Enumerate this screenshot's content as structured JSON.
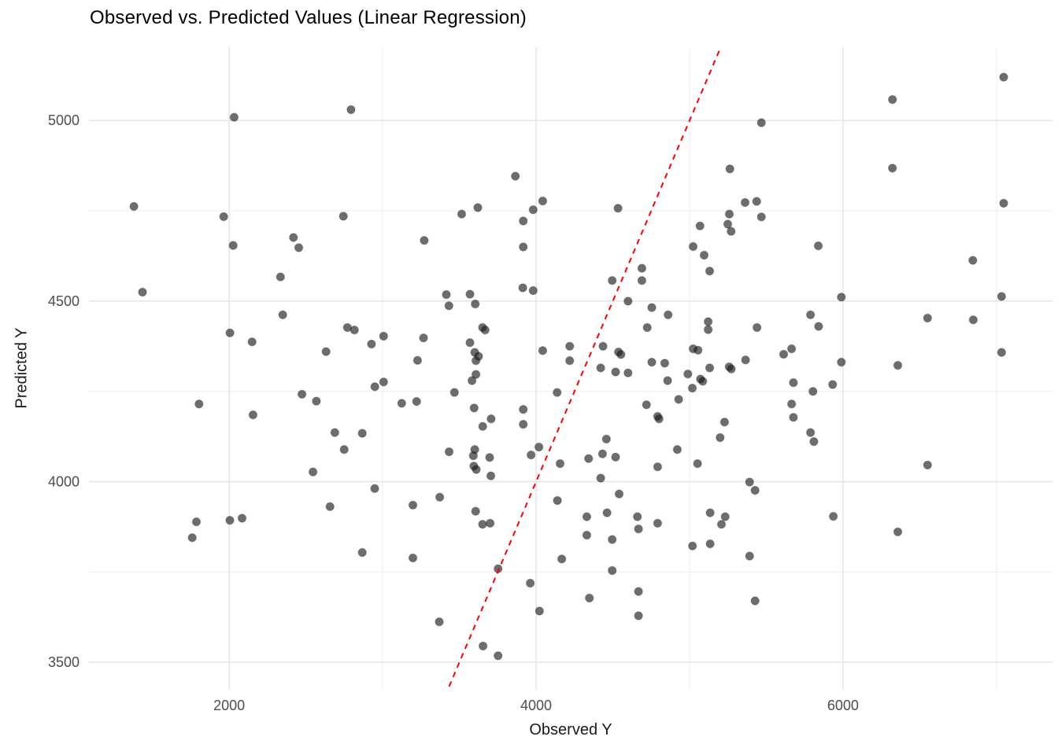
{
  "chart_data": {
    "type": "scatter",
    "title": "Observed vs. Predicted Values (Linear Regression)",
    "xlabel": "Observed Y",
    "ylabel": "Predicted Y",
    "xlim": [
      1086,
      7365
    ],
    "ylim": [
      3424,
      5203
    ],
    "x_major_ticks": [
      2000,
      4000,
      6000
    ],
    "y_major_ticks": [
      3500,
      4000,
      4500,
      5000
    ],
    "x_minor_gridlines": [
      3000,
      5000,
      7000
    ],
    "y_minor_gridlines": [
      3750,
      4250,
      4750
    ],
    "grid": true,
    "legend_position": "none",
    "reference_line": {
      "type": "identity",
      "slope": 1,
      "intercept": 0,
      "x_start": 3433,
      "x_end": 5203,
      "style": "dashed",
      "color": "#ff0000"
    },
    "style": {
      "point_color": "#1a1a1a",
      "point_opacity": 0.64,
      "point_edge_opacity": 0.22,
      "point_radius": 5.2,
      "grid_major_color": "#e3e3e3",
      "grid_minor_color": "#efefef",
      "tick_text_color": "#4d4d4d",
      "background": "#ffffff"
    },
    "points": [
      [
        2032,
        5009
      ],
      [
        1379,
        4762
      ],
      [
        1964,
        4734
      ],
      [
        2419,
        4676
      ],
      [
        2026,
        4654
      ],
      [
        2453,
        4648
      ],
      [
        2794,
        5030
      ],
      [
        3865,
        4846
      ],
      [
        4043,
        4777
      ],
      [
        3981,
        4753
      ],
      [
        3620,
        4759
      ],
      [
        3515,
        4741
      ],
      [
        2744,
        4735
      ],
      [
        3916,
        4722
      ],
      [
        3271,
        4668
      ],
      [
        3916,
        4650
      ],
      [
        5468,
        4994
      ],
      [
        5263,
        4866
      ],
      [
        5362,
        4773
      ],
      [
        5437,
        4776
      ],
      [
        4534,
        4757
      ],
      [
        5259,
        4741
      ],
      [
        5468,
        4733
      ],
      [
        5249,
        4713
      ],
      [
        5068,
        4708
      ],
      [
        5271,
        4693
      ],
      [
        5023,
        4651
      ],
      [
        5095,
        4627
      ],
      [
        7047,
        5120
      ],
      [
        6322,
        5058
      ],
      [
        6322,
        4868
      ],
      [
        7047,
        4771
      ],
      [
        5839,
        4653
      ],
      [
        6846,
        4613
      ],
      [
        2334,
        4567
      ],
      [
        1435,
        4525
      ],
      [
        2349,
        4462
      ],
      [
        2005,
        4412
      ],
      [
        2149,
        4387
      ],
      [
        2631,
        4360
      ],
      [
        2474,
        4242
      ],
      [
        2568,
        4223
      ],
      [
        1803,
        4215
      ],
      [
        2155,
        4185
      ],
      [
        2546,
        4027
      ],
      [
        3415,
        4518
      ],
      [
        3569,
        4519
      ],
      [
        3913,
        4537
      ],
      [
        3981,
        4529
      ],
      [
        3432,
        4487
      ],
      [
        3603,
        4492
      ],
      [
        2770,
        4427
      ],
      [
        2816,
        4420
      ],
      [
        3006,
        4403
      ],
      [
        3651,
        4427
      ],
      [
        3668,
        4420
      ],
      [
        2927,
        4381
      ],
      [
        3266,
        4398
      ],
      [
        3569,
        4385
      ],
      [
        3600,
        4358
      ],
      [
        3625,
        4347
      ],
      [
        3608,
        4335
      ],
      [
        3227,
        4336
      ],
      [
        4043,
        4363
      ],
      [
        3608,
        4297
      ],
      [
        3582,
        4280
      ],
      [
        2949,
        4263
      ],
      [
        3006,
        4276
      ],
      [
        3468,
        4247
      ],
      [
        4137,
        4247
      ],
      [
        3124,
        4217
      ],
      [
        3221,
        4222
      ],
      [
        3596,
        4204
      ],
      [
        3707,
        4174
      ],
      [
        3652,
        4153
      ],
      [
        3916,
        4159
      ],
      [
        3916,
        4200
      ],
      [
        2688,
        4136
      ],
      [
        2867,
        4134
      ],
      [
        2749,
        4089
      ],
      [
        3433,
        4083
      ],
      [
        3600,
        4089
      ],
      [
        3591,
        4072
      ],
      [
        3697,
        4067
      ],
      [
        3594,
        4043
      ],
      [
        3610,
        4034
      ],
      [
        3967,
        4074
      ],
      [
        4018,
        4096
      ],
      [
        4156,
        4050
      ],
      [
        4689,
        4591
      ],
      [
        4496,
        4557
      ],
      [
        4689,
        4557
      ],
      [
        5131,
        4583
      ],
      [
        4599,
        4500
      ],
      [
        4754,
        4482
      ],
      [
        4860,
        4462
      ],
      [
        4724,
        4427
      ],
      [
        5121,
        4443
      ],
      [
        5121,
        4421
      ],
      [
        5439,
        4427
      ],
      [
        4219,
        4375
      ],
      [
        4436,
        4375
      ],
      [
        4537,
        4359
      ],
      [
        4553,
        4352
      ],
      [
        4219,
        4335
      ],
      [
        5023,
        4368
      ],
      [
        5055,
        4364
      ],
      [
        5665,
        4368
      ],
      [
        5613,
        4353
      ],
      [
        4421,
        4315
      ],
      [
        4518,
        4304
      ],
      [
        4599,
        4301
      ],
      [
        4754,
        4331
      ],
      [
        4838,
        4328
      ],
      [
        5131,
        4315
      ],
      [
        5258,
        4318
      ],
      [
        5272,
        4312
      ],
      [
        5365,
        4337
      ],
      [
        4857,
        4280
      ],
      [
        4989,
        4298
      ],
      [
        5071,
        4284
      ],
      [
        5086,
        4278
      ],
      [
        5018,
        4259
      ],
      [
        5677,
        4274
      ],
      [
        4929,
        4228
      ],
      [
        4719,
        4213
      ],
      [
        4792,
        4181
      ],
      [
        4801,
        4174
      ],
      [
        5665,
        4215
      ],
      [
        5677,
        4178
      ],
      [
        5228,
        4165
      ],
      [
        5199,
        4122
      ],
      [
        4458,
        4118
      ],
      [
        4433,
        4077
      ],
      [
        4342,
        4064
      ],
      [
        4518,
        4068
      ],
      [
        4920,
        4089
      ],
      [
        4792,
        4041
      ],
      [
        5052,
        4050
      ],
      [
        5989,
        4511
      ],
      [
        7033,
        4513
      ],
      [
        5788,
        4462
      ],
      [
        5841,
        4430
      ],
      [
        6551,
        4453
      ],
      [
        6849,
        4448
      ],
      [
        7033,
        4358
      ],
      [
        5989,
        4331
      ],
      [
        6357,
        4322
      ],
      [
        5932,
        4269
      ],
      [
        5804,
        4250
      ],
      [
        5788,
        4136
      ],
      [
        5810,
        4111
      ],
      [
        6551,
        4046
      ],
      [
        1786,
        3889
      ],
      [
        2004,
        3893
      ],
      [
        2084,
        3899
      ],
      [
        1759,
        3845
      ],
      [
        3705,
        4016
      ],
      [
        2948,
        3981
      ],
      [
        3372,
        3957
      ],
      [
        2657,
        3931
      ],
      [
        3197,
        3935
      ],
      [
        3606,
        3918
      ],
      [
        3651,
        3882
      ],
      [
        3700,
        3885
      ],
      [
        4139,
        3948
      ],
      [
        2867,
        3804
      ],
      [
        3197,
        3789
      ],
      [
        4167,
        3786
      ],
      [
        3752,
        3759
      ],
      [
        3962,
        3719
      ],
      [
        4022,
        3642
      ],
      [
        3369,
        3612
      ],
      [
        3654,
        3545
      ],
      [
        3752,
        3518
      ],
      [
        4421,
        4010
      ],
      [
        5391,
        3999
      ],
      [
        5427,
        3976
      ],
      [
        4541,
        3966
      ],
      [
        4462,
        3914
      ],
      [
        4330,
        3903
      ],
      [
        4660,
        3903
      ],
      [
        4792,
        3885
      ],
      [
        4667,
        3869
      ],
      [
        4330,
        3852
      ],
      [
        4496,
        3840
      ],
      [
        5134,
        3914
      ],
      [
        5232,
        3903
      ],
      [
        5208,
        3882
      ],
      [
        5019,
        3822
      ],
      [
        5134,
        3828
      ],
      [
        5391,
        3794
      ],
      [
        4496,
        3754
      ],
      [
        4667,
        3696
      ],
      [
        4347,
        3678
      ],
      [
        5427,
        3670
      ],
      [
        4667,
        3629
      ],
      [
        5937,
        3904
      ],
      [
        6357,
        3861
      ]
    ]
  }
}
